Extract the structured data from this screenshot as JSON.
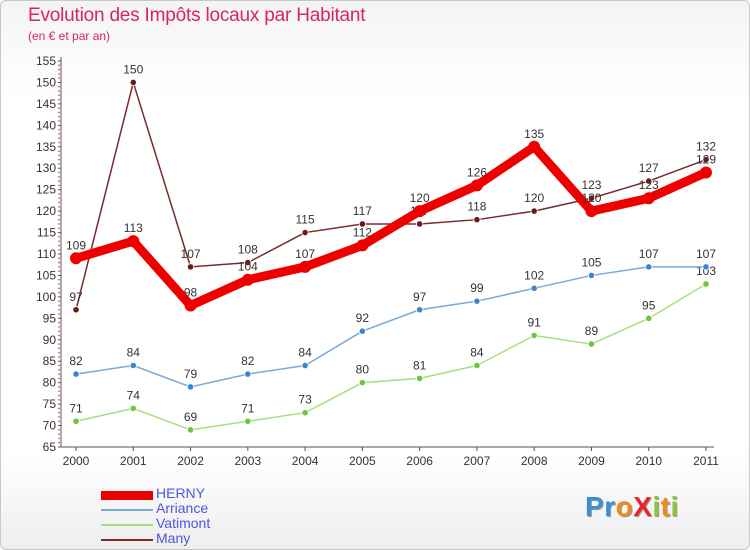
{
  "chart_data": {
    "type": "line",
    "title": "Evolution des Impôts locaux par Habitant",
    "subtitle": "(en € et par an)",
    "x": [
      "2000",
      "2001",
      "2002",
      "2003",
      "2004",
      "2005",
      "2006",
      "2007",
      "2008",
      "2009",
      "2010",
      "2011"
    ],
    "ylim": [
      65,
      155
    ],
    "yticks": [
      65,
      70,
      75,
      80,
      85,
      90,
      95,
      100,
      105,
      110,
      115,
      120,
      125,
      130,
      135,
      140,
      145,
      150,
      155
    ],
    "grid": false,
    "legend_position": "bottom-left",
    "series": [
      {
        "name": "Many",
        "color": "#7a2a2a",
        "point_color": "#6b1a1a",
        "emphasis": false,
        "values": [
          97,
          150,
          107,
          108,
          115,
          117,
          117,
          118,
          120,
          123,
          127,
          132
        ]
      },
      {
        "name": "Vatimont",
        "color": "#a6e07e",
        "point_color": "#6cc53e",
        "emphasis": false,
        "values": [
          71,
          74,
          69,
          71,
          73,
          80,
          81,
          84,
          91,
          89,
          95,
          103
        ]
      },
      {
        "name": "Arriance",
        "color": "#78a9d6",
        "point_color": "#3d86cf",
        "emphasis": false,
        "values": [
          82,
          84,
          79,
          82,
          84,
          92,
          97,
          99,
          102,
          105,
          107,
          107
        ]
      },
      {
        "name": "HERNY",
        "color": "#ee0000",
        "point_color": "#ee0000",
        "emphasis": true,
        "values": [
          109,
          113,
          98,
          104,
          107,
          112,
          120,
          126,
          135,
          120,
          123,
          129
        ]
      }
    ],
    "legend_order": [
      "HERNY",
      "Arriance",
      "Vatimont",
      "Many"
    ]
  },
  "branding": {
    "logo_letters": [
      {
        "char": "P",
        "color": "#3a8fd6"
      },
      {
        "char": "r",
        "color": "#3a8fd6"
      },
      {
        "char": "o",
        "color": "#f08a1c"
      },
      {
        "char": "X",
        "color": "#e8262b"
      },
      {
        "char": "i",
        "color": "#8cc63e"
      },
      {
        "char": "t",
        "color": "#f08a1c"
      },
      {
        "char": "i",
        "color": "#8cc63e"
      }
    ]
  }
}
